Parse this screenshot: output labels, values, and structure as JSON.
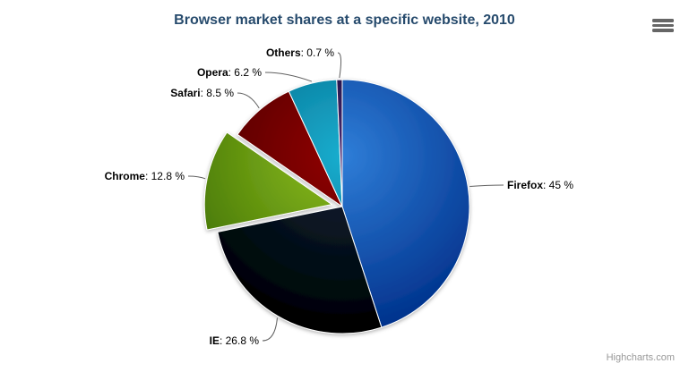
{
  "credits": "Highcharts.com",
  "export_menu": {
    "icon": "hamburger-icon"
  },
  "theme": {
    "background": "#ffffff",
    "title_color": "#274b6d",
    "label_color": "#000000",
    "connector_color": "#606060",
    "credits_color": "#999999",
    "menu_icon_color": "#666666",
    "slice_border_color": "#ffffff"
  },
  "chart_data": {
    "type": "pie",
    "title": "Browser market shares at a specific website, 2010",
    "legend": false,
    "start_angle_deg": 0,
    "direction": "clockwise",
    "label_format": "{name}: {value} %",
    "slices": [
      {
        "name": "Firefox",
        "value": 45,
        "label": "Firefox: 45 %",
        "color": "#2f7ed8",
        "sliced": false
      },
      {
        "name": "IE",
        "value": 26.8,
        "label": "IE: 26.8 %",
        "color": "#0d233a",
        "sliced": false
      },
      {
        "name": "Chrome",
        "value": 12.8,
        "label": "Chrome: 12.8 %",
        "color": "#8bbc21",
        "sliced": true
      },
      {
        "name": "Safari",
        "value": 8.5,
        "label": "Safari: 8.5 %",
        "color": "#910000",
        "sliced": false
      },
      {
        "name": "Opera",
        "value": 6.2,
        "label": "Opera: 6.2 %",
        "color": "#1aadce",
        "sliced": false
      },
      {
        "name": "Others",
        "value": 0.7,
        "label": "Others: 0.7 %",
        "color": "#492970",
        "sliced": false
      }
    ]
  }
}
